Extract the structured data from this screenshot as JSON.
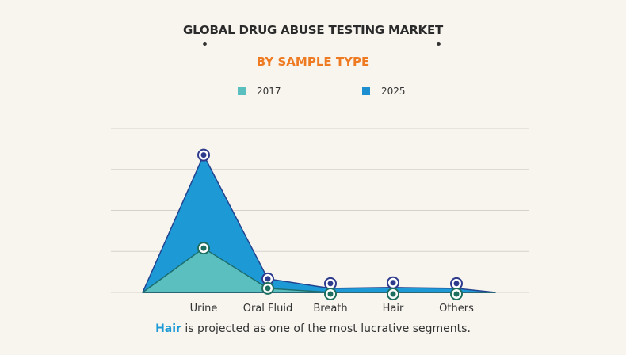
{
  "header": {
    "title": "GLOBAL DRUG ABUSE TESTING  MARKET",
    "subtitle": "BY SAMPLE TYPE"
  },
  "footer": {
    "highlight": "Hair",
    "text": " is projected as one of the most lucrative segments."
  },
  "chart_data": {
    "type": "area",
    "title": "GLOBAL DRUG ABUSE TESTING  MARKET",
    "subtitle": "BY SAMPLE TYPE",
    "categories": [
      "Urine",
      "Oral Fluid",
      "Breath",
      "Hair",
      "Others"
    ],
    "series": [
      {
        "name": "2017",
        "color": "#5bbfc0",
        "marker_color": "#1d6e5e",
        "values": [
          1.08,
          0.1,
          0.0,
          0.0,
          0.0
        ]
      },
      {
        "name": "2025",
        "color": "#1d9ad6",
        "marker_color": "#2e3a8c",
        "values": [
          3.35,
          0.33,
          0.1,
          0.12,
          0.1
        ]
      }
    ],
    "ylim": [
      0,
      4
    ],
    "grid": true,
    "y_tick_labels_shown": false,
    "legend_position": "top",
    "xlabel": "",
    "ylabel": ""
  }
}
